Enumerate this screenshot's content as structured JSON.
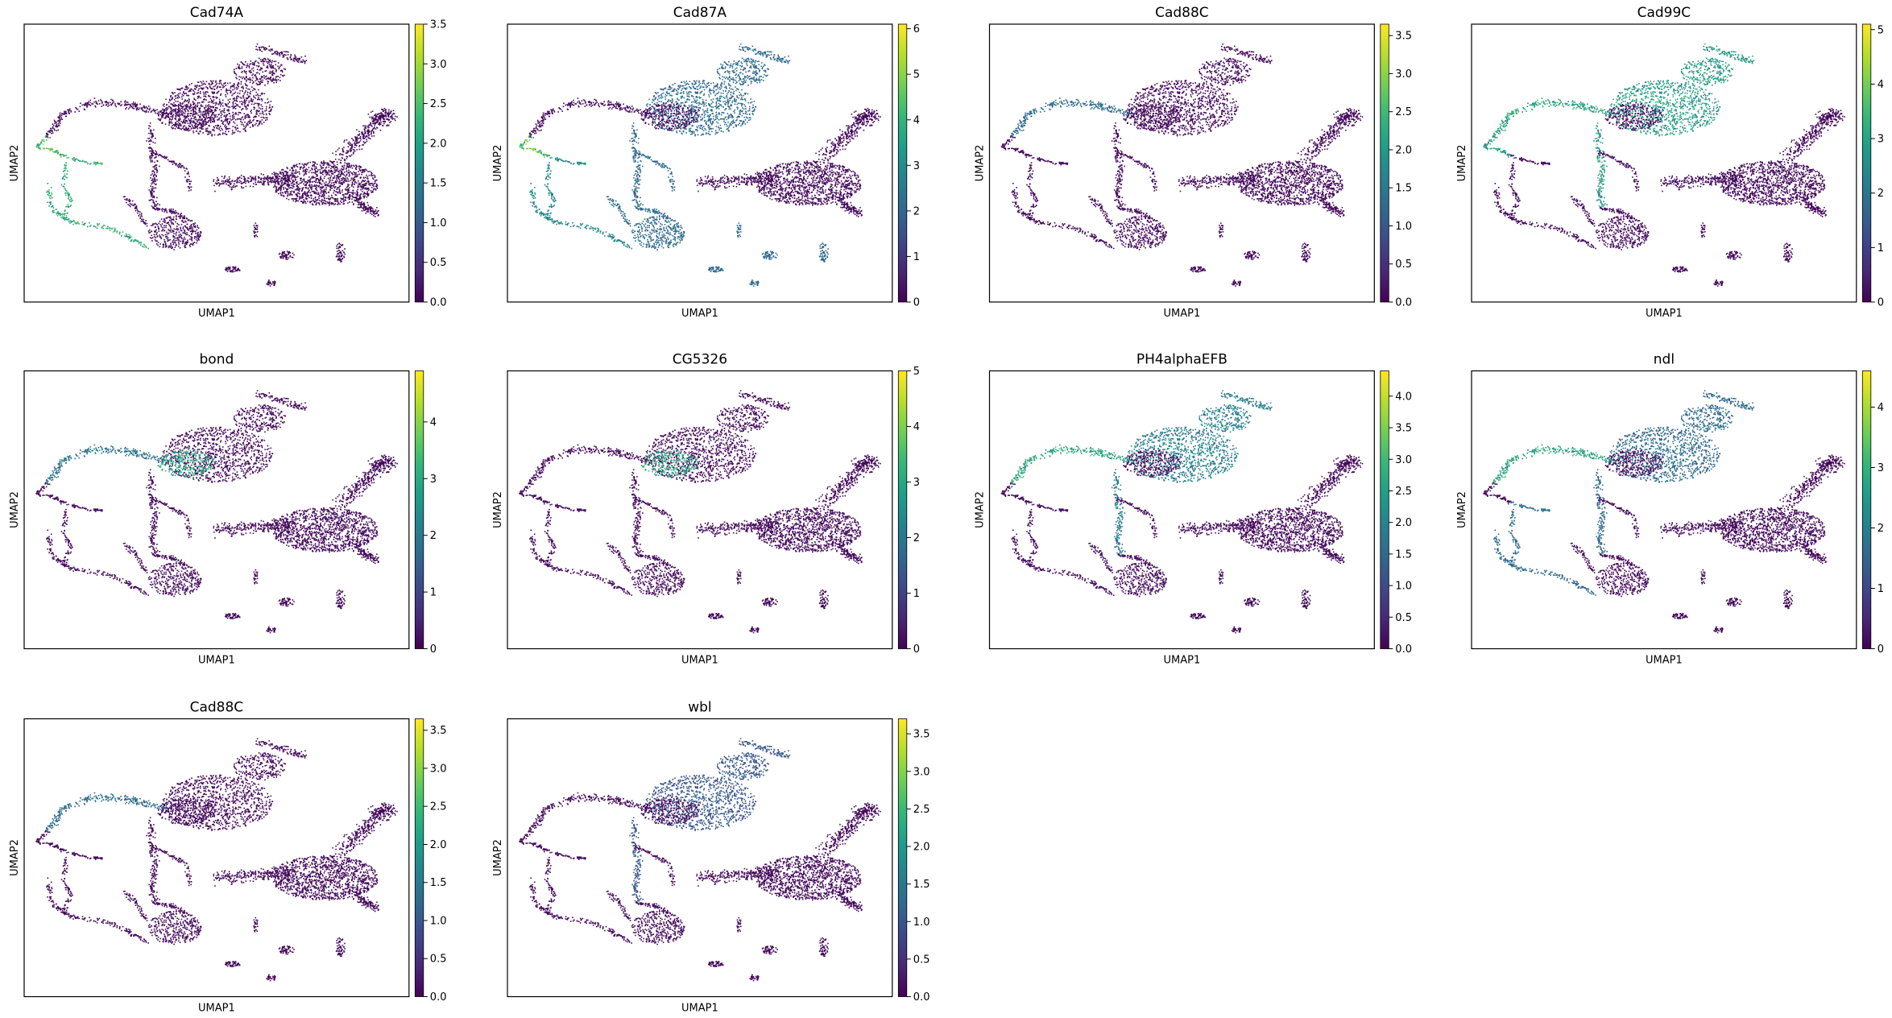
{
  "figure": {
    "colormap": "viridis",
    "viridis_stops": [
      "#440154",
      "#482878",
      "#3e4989",
      "#31688e",
      "#26828e",
      "#1f9e89",
      "#35b779",
      "#6ece58",
      "#b5de2b",
      "#fde725"
    ]
  },
  "chart_data": [
    {
      "type": "scatter",
      "title": "Cad74A",
      "xlabel": "UMAP1",
      "ylabel": "UMAP2",
      "colorbar": {
        "ticks": [
          0.0,
          0.5,
          1.0,
          1.5,
          2.0,
          2.5,
          3.0,
          3.5
        ],
        "tick_labels": [
          "0.0",
          "0.5",
          "1.0",
          "1.5",
          "2.0",
          "2.5",
          "3.0",
          "3.5"
        ],
        "max": 3.5
      },
      "hotspots": [
        {
          "region": "far-left-loop",
          "level": 0.9
        },
        {
          "region": "left-tail-lower",
          "level": 0.8
        }
      ]
    },
    {
      "type": "scatter",
      "title": "Cad87A",
      "xlabel": "UMAP1",
      "ylabel": "UMAP2",
      "colorbar": {
        "ticks": [
          0,
          1,
          2,
          3,
          4,
          5,
          6
        ],
        "tick_labels": [
          "0",
          "1",
          "2",
          "3",
          "4",
          "5",
          "6"
        ],
        "max": 6.1
      },
      "hotspots": [
        {
          "region": "far-left-loop",
          "level": 0.95
        },
        {
          "region": "upper-cluster",
          "level": 0.45
        },
        {
          "region": "left-tail-lower",
          "level": 0.6
        },
        {
          "region": "lower-middle",
          "level": 0.45
        },
        {
          "region": "small-islands",
          "level": 0.45
        }
      ]
    },
    {
      "type": "scatter",
      "title": "Cad88C",
      "xlabel": "UMAP1",
      "ylabel": "UMAP2",
      "colorbar": {
        "ticks": [
          0.0,
          0.5,
          1.0,
          1.5,
          2.0,
          2.5,
          3.0,
          3.5
        ],
        "tick_labels": [
          "0.0",
          "0.5",
          "1.0",
          "1.5",
          "2.0",
          "2.5",
          "3.0",
          "3.5"
        ],
        "max": 3.65
      },
      "hotspots": [
        {
          "region": "upper-left-arm",
          "level": 0.45
        }
      ]
    },
    {
      "type": "scatter",
      "title": "Cad99C",
      "xlabel": "UMAP1",
      "ylabel": "UMAP2",
      "colorbar": {
        "ticks": [
          0,
          1,
          2,
          3,
          4,
          5
        ],
        "tick_labels": [
          "0",
          "1",
          "2",
          "3",
          "4",
          "5"
        ],
        "max": 5.1
      },
      "hotspots": [
        {
          "region": "upper-cluster",
          "level": 0.7
        },
        {
          "region": "upper-left-arm",
          "level": 0.75
        },
        {
          "region": "far-left-loop",
          "level": 0.7
        }
      ]
    },
    {
      "type": "scatter",
      "title": "bond",
      "xlabel": "UMAP1",
      "ylabel": "UMAP2",
      "colorbar": {
        "ticks": [
          0,
          1,
          2,
          3,
          4
        ],
        "tick_labels": [
          "0",
          "1",
          "2",
          "3",
          "4"
        ],
        "max": 4.9
      },
      "hotspots": [
        {
          "region": "upper-cluster-center",
          "level": 0.75
        },
        {
          "region": "upper-left-arm",
          "level": 0.5
        }
      ]
    },
    {
      "type": "scatter",
      "title": "CG5326",
      "xlabel": "UMAP1",
      "ylabel": "UMAP2",
      "colorbar": {
        "ticks": [
          0,
          1,
          2,
          3,
          4,
          5
        ],
        "tick_labels": [
          "0",
          "1",
          "2",
          "3",
          "4",
          "5"
        ],
        "max": 5.0
      },
      "hotspots": [
        {
          "region": "upper-cluster-center",
          "level": 0.75
        }
      ]
    },
    {
      "type": "scatter",
      "title": "PH4alphaEFB",
      "xlabel": "UMAP1",
      "ylabel": "UMAP2",
      "colorbar": {
        "ticks": [
          0.0,
          0.5,
          1.0,
          1.5,
          2.0,
          2.5,
          3.0,
          3.5,
          4.0
        ],
        "tick_labels": [
          "0.0",
          "0.5",
          "1.0",
          "1.5",
          "2.0",
          "2.5",
          "3.0",
          "3.5",
          "4.0"
        ],
        "max": 4.4
      },
      "hotspots": [
        {
          "region": "upper-left-arm",
          "level": 0.75
        },
        {
          "region": "upper-cluster",
          "level": 0.55
        }
      ]
    },
    {
      "type": "scatter",
      "title": "ndl",
      "xlabel": "UMAP1",
      "ylabel": "UMAP2",
      "colorbar": {
        "ticks": [
          0,
          1,
          2,
          3,
          4
        ],
        "tick_labels": [
          "0",
          "1",
          "2",
          "3",
          "4"
        ],
        "max": 4.6
      },
      "hotspots": [
        {
          "region": "upper-left-arm",
          "level": 0.75
        },
        {
          "region": "upper-cluster",
          "level": 0.45
        },
        {
          "region": "left-tail-lower",
          "level": 0.45
        }
      ]
    },
    {
      "type": "scatter",
      "title": "Cad88C",
      "xlabel": "UMAP1",
      "ylabel": "UMAP2",
      "colorbar": {
        "ticks": [
          0.0,
          0.5,
          1.0,
          1.5,
          2.0,
          2.5,
          3.0,
          3.5
        ],
        "tick_labels": [
          "0.0",
          "0.5",
          "1.0",
          "1.5",
          "2.0",
          "2.5",
          "3.0",
          "3.5"
        ],
        "max": 3.65
      },
      "hotspots": [
        {
          "region": "upper-left-arm",
          "level": 0.45
        }
      ]
    },
    {
      "type": "scatter",
      "title": "wbl",
      "xlabel": "UMAP1",
      "ylabel": "UMAP2",
      "colorbar": {
        "ticks": [
          0.0,
          0.5,
          1.0,
          1.5,
          2.0,
          2.5,
          3.0,
          3.5
        ],
        "tick_labels": [
          "0.0",
          "0.5",
          "1.0",
          "1.5",
          "2.0",
          "2.5",
          "3.0",
          "3.5"
        ],
        "max": 3.7
      },
      "hotspots": [
        {
          "region": "upper-cluster",
          "level": 0.35
        }
      ]
    }
  ]
}
